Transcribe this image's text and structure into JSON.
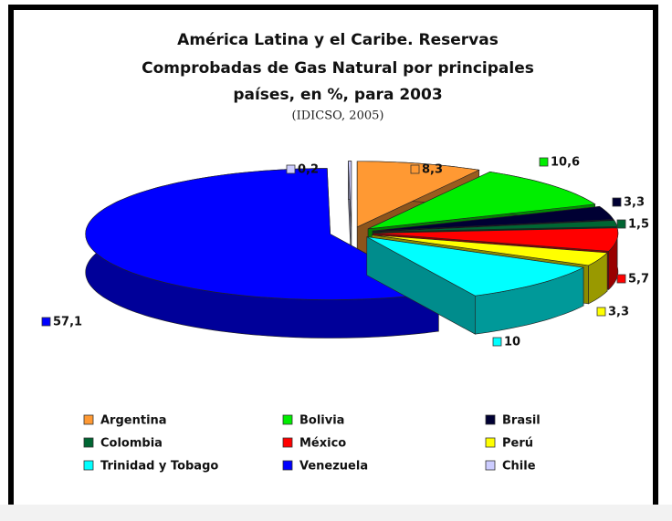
{
  "chart_data": {
    "type": "pie",
    "title": [
      "América Latina y el Caribe. Reservas",
      "Comprobadas de Gas Natural por principales",
      "países, en %, para 2003"
    ],
    "subtitle": "(IDICSO, 2005)",
    "categories": [
      "Argentina",
      "Bolivia",
      "Brasil",
      "Colombia",
      "México",
      "Perú",
      "Trinidad y Tobago",
      "Venezuela",
      "Chile"
    ],
    "values": [
      8.3,
      10.6,
      3.3,
      1.5,
      5.7,
      3.3,
      10,
      57.1,
      0.2
    ],
    "value_labels": [
      "8,3",
      "10,6",
      "3,3",
      "1,5",
      "5,7",
      "3,3",
      "10",
      "57,1",
      "0,2"
    ],
    "colors": [
      "#ff9933",
      "#00ee00",
      "#000033",
      "#006633",
      "#ff0000",
      "#ffff00",
      "#00ffff",
      "#0000ff",
      "#ccccff"
    ],
    "legend": "bottom"
  }
}
